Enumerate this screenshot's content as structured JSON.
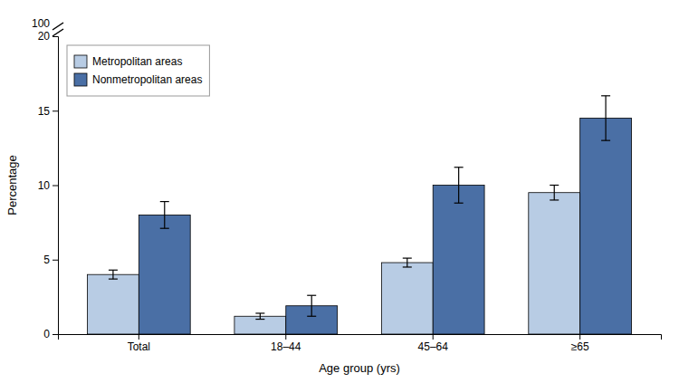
{
  "chart_data": {
    "type": "bar",
    "categories": [
      "Total",
      "18–44",
      "45–64",
      "≥65"
    ],
    "series": [
      {
        "name": "Metropolitan areas",
        "color": "#b8cce4",
        "values": [
          4.0,
          1.2,
          4.8,
          9.5
        ],
        "errors": [
          0.3,
          0.2,
          0.3,
          0.5
        ]
      },
      {
        "name": "Nonmetropolitan areas",
        "color": "#4a6fa5",
        "values": [
          8.0,
          1.9,
          10.0,
          14.5
        ],
        "errors": [
          0.9,
          0.7,
          1.2,
          1.5
        ]
      }
    ],
    "xlabel": "Age group (yrs)",
    "ylabel": "Percentage",
    "ylim": [
      0,
      20
    ],
    "yticks": [
      0,
      5,
      10,
      15,
      20
    ],
    "grid": false,
    "legend": "upper left",
    "annotations": [
      "100"
    ]
  }
}
